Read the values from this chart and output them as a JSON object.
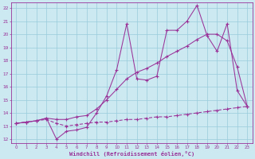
{
  "background_color": "#cce8f0",
  "grid_color": "#aaddee",
  "line_color": "#993399",
  "xlabel": "Windchill (Refroidissement éolien,°C)",
  "ylabel_ticks": [
    12,
    13,
    14,
    15,
    16,
    17,
    18,
    19,
    20,
    21,
    22
  ],
  "xlabel_ticks": [
    0,
    1,
    2,
    3,
    4,
    5,
    6,
    7,
    8,
    9,
    10,
    11,
    12,
    13,
    14,
    15,
    16,
    17,
    18,
    19,
    20,
    21,
    22,
    23
  ],
  "ylim": [
    11.7,
    22.4
  ],
  "xlim": [
    -0.5,
    23.5
  ],
  "line1_x": [
    0,
    1,
    2,
    3,
    4,
    5,
    6,
    7,
    8,
    9,
    10,
    11,
    12,
    13,
    14,
    15,
    16,
    17,
    18,
    19,
    20,
    21,
    22,
    23
  ],
  "line1_y": [
    13.2,
    13.3,
    13.4,
    13.6,
    12.0,
    12.6,
    12.7,
    12.9,
    14.0,
    15.3,
    17.3,
    20.8,
    16.6,
    16.5,
    16.8,
    20.3,
    20.3,
    21.0,
    22.2,
    19.9,
    18.7,
    20.8,
    15.7,
    14.5
  ],
  "line2_x": [
    0,
    1,
    2,
    3,
    4,
    5,
    6,
    7,
    8,
    9,
    10,
    11,
    12,
    13,
    14,
    15,
    16,
    17,
    18,
    19,
    20,
    21,
    22,
    23
  ],
  "line2_y": [
    13.2,
    13.3,
    13.4,
    13.6,
    13.5,
    13.5,
    13.7,
    13.8,
    14.3,
    15.0,
    15.8,
    16.6,
    17.1,
    17.4,
    17.8,
    18.3,
    18.7,
    19.1,
    19.6,
    20.0,
    20.0,
    19.5,
    17.5,
    14.5
  ],
  "line3_x": [
    0,
    1,
    2,
    3,
    4,
    5,
    6,
    7,
    8,
    9,
    10,
    11,
    12,
    13,
    14,
    15,
    16,
    17,
    18,
    19,
    20,
    21,
    22,
    23
  ],
  "line3_y": [
    13.2,
    13.3,
    13.4,
    13.5,
    13.2,
    13.0,
    13.1,
    13.2,
    13.3,
    13.3,
    13.4,
    13.5,
    13.5,
    13.6,
    13.7,
    13.7,
    13.8,
    13.9,
    14.0,
    14.1,
    14.2,
    14.3,
    14.4,
    14.5
  ]
}
